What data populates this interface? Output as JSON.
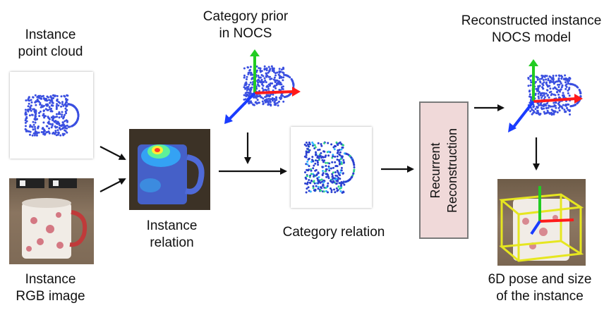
{
  "labels": {
    "instance_point_cloud": "Instance\npoint cloud",
    "instance_rgb": "Instance\nRGB image",
    "instance_relation": "Instance\nrelation",
    "category_prior": "Category prior\nin NOCS",
    "category_relation": "Category relation",
    "recurrent": "Recurrent\nReconstruction",
    "reconstructed": "Reconstructed instance\nNOCS model",
    "pose": "6D pose and size\nof the instance"
  },
  "colors": {
    "points": "#3a4fe0",
    "axis_x": "#ff1a1a",
    "axis_y": "#22cc22",
    "axis_z": "#1a3cff",
    "box_fill": "#f0d9d9",
    "bbox": "#e6e620"
  }
}
